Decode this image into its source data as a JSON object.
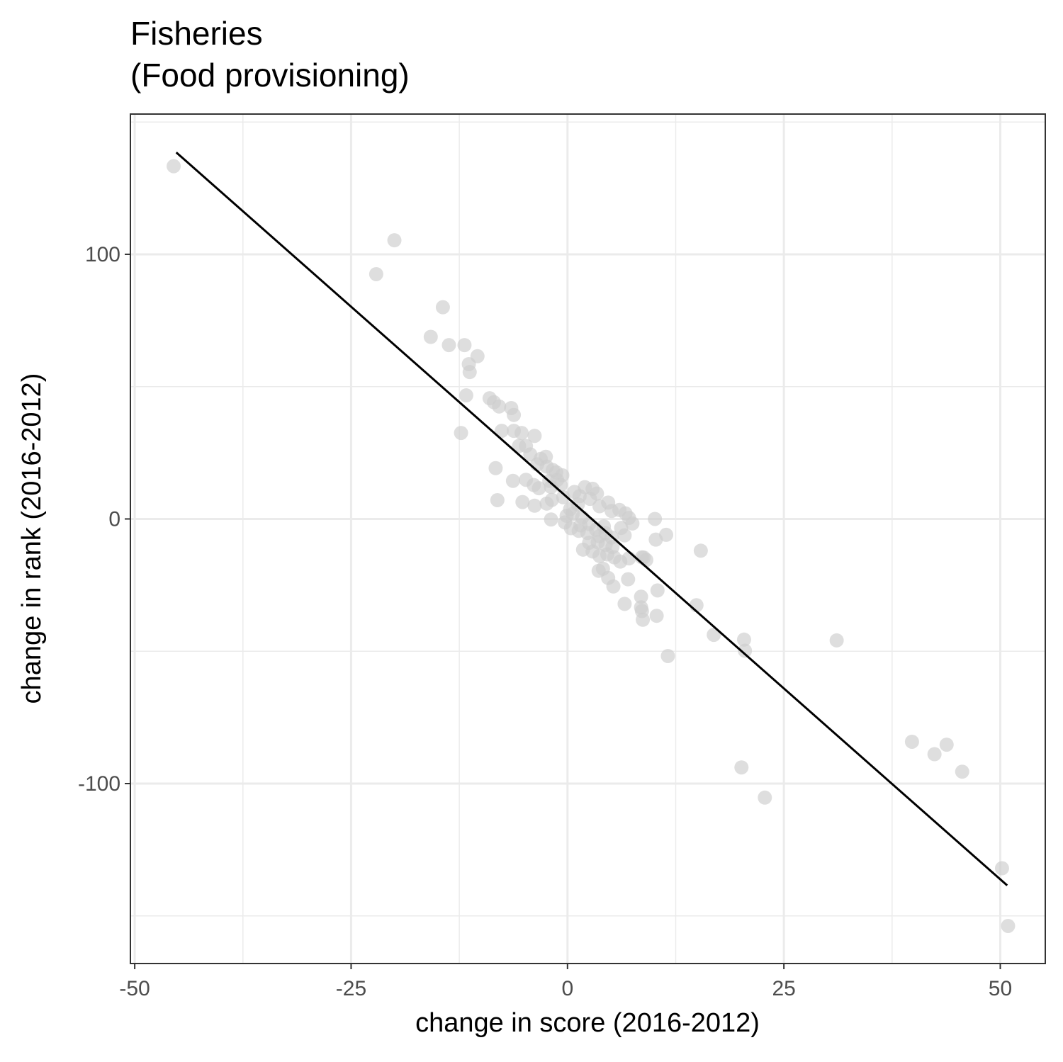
{
  "chart_data": {
    "type": "scatter",
    "title_line1": "Fisheries",
    "title_line2": "(Food provisioning)",
    "xlabel": "change in score (2016-2012)",
    "ylabel": "change in rank (2016-2012)",
    "xlim": [
      -50.5,
      55.2
    ],
    "ylim": [
      -168,
      153
    ],
    "x_ticks": [
      {
        "value": -50,
        "label": "-50"
      },
      {
        "value": -25,
        "label": "-25"
      },
      {
        "value": 0,
        "label": "0"
      },
      {
        "value": 25,
        "label": "25"
      },
      {
        "value": 50,
        "label": "50"
      }
    ],
    "y_ticks": [
      {
        "value": 100,
        "label": "100"
      },
      {
        "value": 0,
        "label": "0"
      },
      {
        "value": -100,
        "label": "-100"
      }
    ],
    "x_minor": [
      -37.5,
      -12.5,
      12.5,
      37.5
    ],
    "y_minor": [
      150,
      50,
      -50,
      -150
    ],
    "grid": true,
    "point_color": "#cccccc",
    "line_color": "#000000",
    "fit_line": {
      "x": [
        -45.2,
        50.8
      ],
      "y": [
        138.5,
        -138.5
      ]
    },
    "points": [
      [
        -45.5,
        133.3
      ],
      [
        -20,
        105.3
      ],
      [
        -22.1,
        92.5
      ],
      [
        -14.4,
        80.0
      ],
      [
        -15.8,
        68.8
      ],
      [
        -13.7,
        65.7
      ],
      [
        -11.9,
        65.7
      ],
      [
        -10.4,
        61.5
      ],
      [
        -11.4,
        58.5
      ],
      [
        -11.3,
        55.5
      ],
      [
        -11.7,
        46.7
      ],
      [
        -9,
        45.6
      ],
      [
        -8.5,
        44.1
      ],
      [
        -7.9,
        42.5
      ],
      [
        -6.5,
        41.9
      ],
      [
        -6.2,
        39.3
      ],
      [
        -7.6,
        33.3
      ],
      [
        -6.2,
        33.3
      ],
      [
        -5.3,
        32.5
      ],
      [
        -3.8,
        31.4
      ],
      [
        -12.3,
        32.5
      ],
      [
        -5.6,
        27.6
      ],
      [
        -4.8,
        27.6
      ],
      [
        -4.3,
        24.4
      ],
      [
        -2.5,
        23.5
      ],
      [
        -3.1,
        22.7
      ],
      [
        -3.5,
        20.6
      ],
      [
        -2.4,
        19.8
      ],
      [
        -1.7,
        18.5
      ],
      [
        -1.3,
        17.6
      ],
      [
        -0.6,
        16.5
      ],
      [
        -1.2,
        14.7
      ],
      [
        -2.1,
        14.4
      ],
      [
        -8.3,
        19.2
      ],
      [
        -6.3,
        14.4
      ],
      [
        -4.8,
        14.8
      ],
      [
        -3.9,
        12.8
      ],
      [
        -3.3,
        11.6
      ],
      [
        -1.9,
        12.1
      ],
      [
        -0.8,
        12.8
      ],
      [
        -8.1,
        7.1
      ],
      [
        -5.2,
        6.4
      ],
      [
        -3.8,
        5.0
      ],
      [
        -2.4,
        5.8
      ],
      [
        -1.8,
        7.2
      ],
      [
        -0.5,
        8.2
      ],
      [
        -1.9,
        -0.2
      ],
      [
        0.8,
        10.2
      ],
      [
        2,
        12
      ],
      [
        2.9,
        11.4
      ],
      [
        1.4,
        8.6
      ],
      [
        3.4,
        9.6
      ],
      [
        2.6,
        7.6
      ],
      [
        4.7,
        6.2
      ],
      [
        1.2,
        5.5
      ],
      [
        0.3,
        3.7
      ],
      [
        3.7,
        4.8
      ],
      [
        5.1,
        3.0
      ],
      [
        6,
        3.4
      ],
      [
        6.7,
        2.1
      ],
      [
        7.1,
        0.4
      ],
      [
        7.5,
        -1.7
      ],
      [
        0.6,
        1.9
      ],
      [
        -0.1,
        1.2
      ],
      [
        -0.3,
        -1.3
      ],
      [
        0.4,
        -3.5
      ],
      [
        1.7,
        0.6
      ],
      [
        1.5,
        -2.4
      ],
      [
        2.5,
        -1.9
      ],
      [
        3.3,
        -4.1
      ],
      [
        4.2,
        -2.8
      ],
      [
        1.3,
        -4.5
      ],
      [
        2.3,
        -5.3
      ],
      [
        3.7,
        -6.5
      ],
      [
        4.4,
        -5.4
      ],
      [
        5.1,
        -7.0
      ],
      [
        6.2,
        -3.4
      ],
      [
        6.6,
        -6.2
      ],
      [
        2.5,
        -9.0
      ],
      [
        3.5,
        -8.8
      ],
      [
        4.4,
        -9.8
      ],
      [
        5.2,
        -10.6
      ],
      [
        1.8,
        -11.6
      ],
      [
        2.9,
        -12.3
      ],
      [
        3.7,
        -14.0
      ],
      [
        4.6,
        -13.4
      ],
      [
        5.4,
        -14.5
      ],
      [
        6.1,
        -16.1
      ],
      [
        7.1,
        -14.9
      ],
      [
        3.6,
        -19.6
      ],
      [
        4.1,
        -18.8
      ],
      [
        4.7,
        -22.3
      ],
      [
        5.3,
        -25.5
      ],
      [
        6.6,
        -32.1
      ],
      [
        7,
        -22.8
      ],
      [
        8.6,
        -14.5
      ],
      [
        8.8,
        -14.6
      ],
      [
        9.1,
        -15.5
      ],
      [
        8.5,
        -29.4
      ],
      [
        8.5,
        -33.4
      ],
      [
        8.6,
        -34.8
      ],
      [
        8.7,
        -38.1
      ],
      [
        10.1,
        0.0
      ],
      [
        11.4,
        -6.0
      ],
      [
        10.2,
        -7.8
      ],
      [
        10.4,
        -27.0
      ],
      [
        10.3,
        -36.6
      ],
      [
        11.6,
        -51.8
      ],
      [
        15.4,
        -12.0
      ],
      [
        14.9,
        -32.6
      ],
      [
        16.9,
        -43.8
      ],
      [
        20.4,
        -45.6
      ],
      [
        20.5,
        -49.8
      ],
      [
        31.1,
        -45.9
      ],
      [
        20.1,
        -93.9
      ],
      [
        22.8,
        -105.3
      ],
      [
        39.8,
        -84.2
      ],
      [
        42.4,
        -88.9
      ],
      [
        43.8,
        -85.3
      ],
      [
        45.6,
        -95.5
      ],
      [
        50.2,
        -132.0
      ],
      [
        50.9,
        -153.8
      ]
    ]
  }
}
